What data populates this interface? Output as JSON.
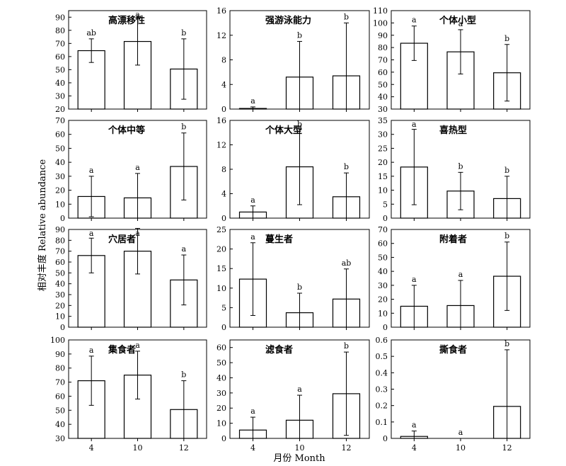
{
  "figure": {
    "ylabel": "相对丰度 Relative abundance",
    "xlabel": "月份 Month"
  },
  "chart_data": [
    {
      "type": "bar",
      "title": "高漂移性",
      "categories": [
        "4",
        "10",
        "12"
      ],
      "values": [
        64.5,
        71.5,
        50.5
      ],
      "errors": [
        9,
        18,
        23
      ],
      "letters": [
        "ab",
        "a",
        "b"
      ],
      "ylim": [
        20,
        95
      ],
      "yticks": [
        20,
        30,
        40,
        50,
        60,
        70,
        80,
        90
      ]
    },
    {
      "type": "bar",
      "title": "强游泳能力",
      "categories": [
        "4",
        "10",
        "12"
      ],
      "values": [
        0.1,
        5.2,
        5.4
      ],
      "errors": [
        0.25,
        5.8,
        8.6
      ],
      "letters": [
        "a",
        "b",
        "b"
      ],
      "ylim": [
        0,
        16
      ],
      "yticks": [
        0,
        4,
        8,
        12,
        16
      ]
    },
    {
      "type": "bar",
      "title": "个体小型",
      "categories": [
        "4",
        "10",
        "12"
      ],
      "values": [
        83.5,
        76.5,
        59.5
      ],
      "errors": [
        14,
        18,
        23
      ],
      "letters": [
        "a",
        "a",
        "b"
      ],
      "ylim": [
        30,
        110
      ],
      "yticks": [
        30,
        40,
        50,
        60,
        70,
        80,
        90,
        100,
        110
      ]
    },
    {
      "type": "bar",
      "title": "个体中等",
      "categories": [
        "4",
        "10",
        "12"
      ],
      "values": [
        15.5,
        14.5,
        37
      ],
      "errors": [
        14.5,
        17.5,
        24
      ],
      "letters": [
        "a",
        "a",
        "b"
      ],
      "ylim": [
        0,
        70
      ],
      "yticks": [
        0,
        10,
        20,
        30,
        40,
        50,
        60,
        70
      ]
    },
    {
      "type": "bar",
      "title": "个体大型",
      "categories": [
        "4",
        "10",
        "12"
      ],
      "values": [
        1,
        8.4,
        3.5
      ],
      "errors": [
        1,
        6.2,
        3.9
      ],
      "letters": [
        "a",
        "b",
        "b"
      ],
      "ylim": [
        0,
        16
      ],
      "yticks": [
        0,
        4,
        8,
        12,
        16
      ]
    },
    {
      "type": "bar",
      "title": "喜热型",
      "categories": [
        "4",
        "10",
        "12"
      ],
      "values": [
        18.3,
        9.7,
        7
      ],
      "errors": [
        13.5,
        6.7,
        8
      ],
      "letters": [
        "a",
        "b",
        "b"
      ],
      "ylim": [
        0,
        35
      ],
      "yticks": [
        0,
        5,
        10,
        15,
        20,
        25,
        30,
        35
      ]
    },
    {
      "type": "bar",
      "title": "穴居者",
      "categories": [
        "4",
        "10",
        "12"
      ],
      "values": [
        66,
        70,
        43.5
      ],
      "errors": [
        16,
        21,
        23
      ],
      "letters": [
        "a",
        "a",
        "a"
      ],
      "ylim": [
        0,
        90
      ],
      "yticks": [
        0,
        10,
        20,
        30,
        40,
        50,
        60,
        70,
        80,
        90
      ]
    },
    {
      "type": "bar",
      "title": "蔓生者",
      "categories": [
        "4",
        "10",
        "12"
      ],
      "values": [
        12.3,
        3.7,
        7.2
      ],
      "errors": [
        9.3,
        5,
        7.7
      ],
      "letters": [
        "a",
        "b",
        "ab"
      ],
      "ylim": [
        0,
        25
      ],
      "yticks": [
        0,
        5,
        10,
        15,
        20,
        25
      ]
    },
    {
      "type": "bar",
      "title": "附着者",
      "categories": [
        "4",
        "10",
        "12"
      ],
      "values": [
        15,
        15.5,
        36.5
      ],
      "errors": [
        15,
        18,
        24.5
      ],
      "letters": [
        "a",
        "a",
        "b"
      ],
      "ylim": [
        0,
        70
      ],
      "yticks": [
        0,
        10,
        20,
        30,
        40,
        50,
        60,
        70
      ]
    },
    {
      "type": "bar",
      "title": "集食者",
      "categories": [
        "4",
        "10",
        "12"
      ],
      "values": [
        71,
        75,
        50.5
      ],
      "errors": [
        17.5,
        17,
        20.5
      ],
      "letters": [
        "a",
        "a",
        "b"
      ],
      "ylim": [
        30,
        100
      ],
      "yticks": [
        30,
        40,
        50,
        60,
        70,
        80,
        90,
        100
      ]
    },
    {
      "type": "bar",
      "title": "滤食者",
      "categories": [
        "4",
        "10",
        "12"
      ],
      "values": [
        5.5,
        12,
        29.5
      ],
      "errors": [
        8.5,
        16.5,
        27.5
      ],
      "letters": [
        "a",
        "a",
        "b"
      ],
      "ylim": [
        0,
        65
      ],
      "yticks": [
        0,
        10,
        20,
        30,
        40,
        50,
        60
      ]
    },
    {
      "type": "bar",
      "title": "撕食者",
      "categories": [
        "4",
        "10",
        "12"
      ],
      "values": [
        0.012,
        0,
        0.195
      ],
      "errors": [
        0.033,
        0,
        0.345
      ],
      "letters": [
        "a",
        "a",
        "b"
      ],
      "ylim": [
        0,
        0.6
      ],
      "yticks": [
        0,
        0.1,
        0.2,
        0.3,
        0.4,
        0.5,
        0.6
      ]
    }
  ]
}
